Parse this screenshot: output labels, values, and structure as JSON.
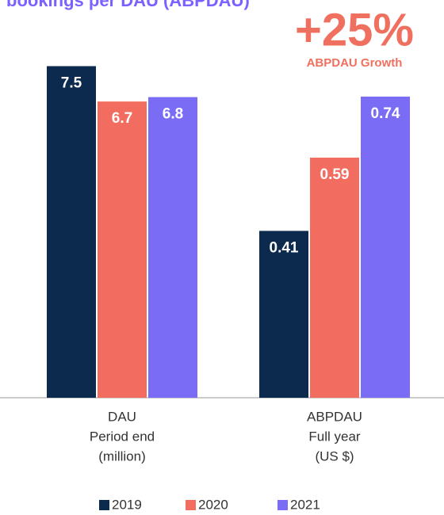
{
  "chart_data": {
    "type": "bar",
    "title": "bookings per DAU (ABPDAU)",
    "annotation": "+25%",
    "annotation_subtitle": "ABPDAU Growth",
    "categories": [
      [
        "DAU",
        "Period end",
        "(million)"
      ],
      [
        "ABPDAU",
        "Full year",
        "(US $)"
      ]
    ],
    "category_axis": [
      "y",
      "y2"
    ],
    "ylim": [
      0,
      8.1
    ],
    "y2lim": [
      0,
      0.88
    ],
    "series": [
      {
        "name": "2019",
        "color": "#0b2a4e",
        "values": [
          7.5,
          0.41
        ]
      },
      {
        "name": "2020",
        "color": "#f26c5f",
        "values": [
          6.7,
          0.59
        ]
      },
      {
        "name": "2021",
        "color": "#7b6cf6",
        "values": [
          6.8,
          0.74
        ]
      }
    ],
    "legend": "bottom"
  }
}
